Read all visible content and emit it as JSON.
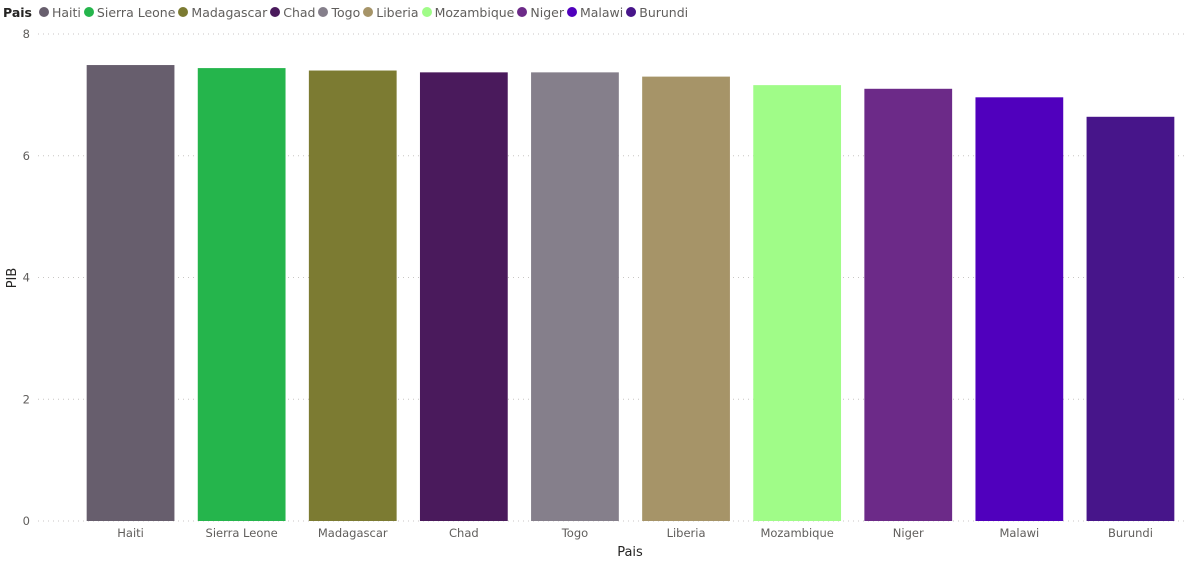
{
  "chart_data": {
    "type": "bar",
    "legend_title": "Pais",
    "legend_position": "top-left",
    "categories": [
      "Haiti",
      "Sierra Leone",
      "Madagascar",
      "Chad",
      "Togo",
      "Liberia",
      "Mozambique",
      "Niger",
      "Malawi",
      "Burundi"
    ],
    "values": [
      7.49,
      7.44,
      7.4,
      7.37,
      7.37,
      7.3,
      7.16,
      7.1,
      6.96,
      6.64
    ],
    "colors": [
      "#675e6d",
      "#25b54c",
      "#7c7b32",
      "#4a1a5c",
      "#857f8b",
      "#a69468",
      "#a0fc88",
      "#6c2a88",
      "#5000bd",
      "#47158a"
    ],
    "xlabel": "Pais",
    "ylabel": "PIB",
    "ylim": [
      0,
      8
    ],
    "yticks": [
      "0",
      "2",
      "4",
      "6",
      "8"
    ],
    "grid": true
  }
}
